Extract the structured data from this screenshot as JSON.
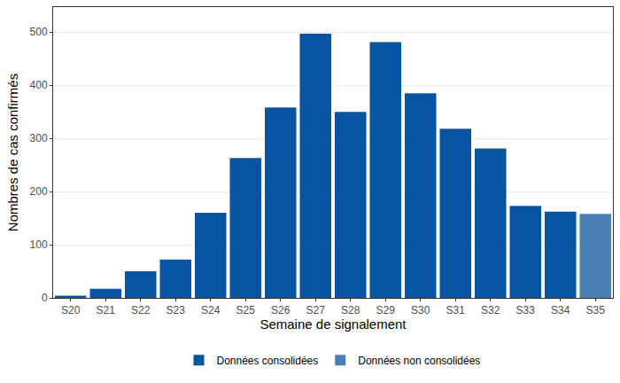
{
  "chart_data": {
    "type": "bar",
    "x_label": "Semaine de signalement",
    "y_label": "Nombres de cas confirmés",
    "categories": [
      "S20",
      "S21",
      "S22",
      "S23",
      "S24",
      "S25",
      "S26",
      "S27",
      "S28",
      "S29",
      "S30",
      "S31",
      "S32",
      "S33",
      "S34",
      "S35"
    ],
    "series": [
      {
        "name": "Données consolidées",
        "color": "#0755A2",
        "values": [
          4,
          17,
          50,
          72,
          160,
          263,
          358,
          497,
          350,
          481,
          385,
          318,
          281,
          173,
          162,
          null
        ]
      },
      {
        "name": "Données non consolidées",
        "color": "#4A80B8",
        "values": [
          null,
          null,
          null,
          null,
          null,
          null,
          null,
          null,
          null,
          null,
          null,
          null,
          null,
          null,
          null,
          158
        ]
      }
    ],
    "ylim": [
      0,
      547
    ],
    "yticks": [
      0,
      100,
      200,
      300,
      400,
      500
    ],
    "grid": true,
    "legend": "bottom"
  }
}
